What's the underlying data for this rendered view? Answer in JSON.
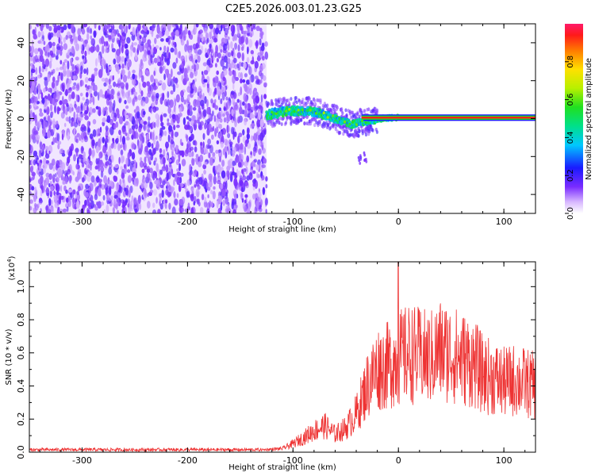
{
  "figure": {
    "title": "C2E5.2026.003.01.23.G25"
  },
  "chart_data": [
    {
      "type": "heatmap",
      "xlabel": "Height of straight line (km)",
      "ylabel": "Frequency (Hz)",
      "xlim": [
        -350,
        130
      ],
      "ylim": [
        -50,
        50
      ],
      "x_ticks": [
        -300,
        -200,
        -100,
        0,
        100
      ],
      "y_ticks": [
        -40,
        -20,
        0,
        20,
        40
      ],
      "noise_region_x": [
        -350,
        -125
      ],
      "signal_track": {
        "x": [
          -125,
          -115,
          -105,
          -95,
          -85,
          -75,
          -65,
          -55,
          -45,
          -35,
          -25,
          -15,
          -5,
          5,
          15,
          25,
          35,
          50,
          70,
          90,
          110,
          130
        ],
        "y": [
          2,
          3,
          4,
          4,
          4,
          3,
          1,
          -1,
          -3,
          -2,
          -1,
          0,
          0.5,
          0.5,
          0.5,
          0.5,
          0.5,
          0.5,
          0.5,
          0.5,
          0.5,
          0.5
        ],
        "amplitude": [
          0.3,
          0.35,
          0.4,
          0.45,
          0.5,
          0.5,
          0.55,
          0.6,
          0.6,
          0.65,
          0.7,
          0.75,
          0.8,
          0.9,
          0.95,
          1.0,
          1.0,
          1.0,
          1.0,
          1.0,
          1.0,
          1.0
        ]
      },
      "colorbar": {
        "label": "Normalized spectral amplitude",
        "range": [
          0,
          1
        ],
        "ticks": [
          "0.0",
          "0.2",
          "0.4",
          "0.6",
          "0.8"
        ],
        "tick_values": [
          0,
          0.2,
          0.4,
          0.6,
          0.8
        ]
      }
    },
    {
      "type": "line",
      "xlabel": "Height of straight line (km)",
      "ylabel": "SNR (10 * v/v)",
      "scale_note": "(x10",
      "scale_exp": "4",
      "scale_close": ")",
      "xlim": [
        -350,
        130
      ],
      "ylim": [
        0,
        1.15
      ],
      "x_ticks": [
        -300,
        -200,
        -100,
        0,
        100
      ],
      "y_ticks": [
        "0.0",
        "0.2",
        "0.4",
        "0.6",
        "0.8",
        "1.0"
      ],
      "y_tick_values": [
        0,
        0.2,
        0.4,
        0.6,
        0.8,
        1.0
      ],
      "series": [
        {
          "color": "#ee3333",
          "envelope": {
            "x": [
              -350,
              -130,
              -110,
              -100,
              -90,
              -80,
              -70,
              -60,
              -50,
              -40,
              -30,
              -20,
              -10,
              0,
              10,
              20,
              30,
              40,
              50,
              60,
              70,
              80,
              90,
              100,
              110,
              120,
              130
            ],
            "y": [
              0.02,
              0.02,
              0.03,
              0.07,
              0.12,
              0.18,
              0.22,
              0.15,
              0.2,
              0.32,
              0.55,
              0.7,
              0.72,
              0.78,
              0.82,
              0.8,
              0.78,
              0.85,
              0.82,
              0.78,
              0.75,
              0.65,
              0.62,
              0.58,
              0.6,
              0.58,
              0.55
            ]
          },
          "spike": {
            "x": 0,
            "y": 1.15
          }
        }
      ]
    }
  ]
}
